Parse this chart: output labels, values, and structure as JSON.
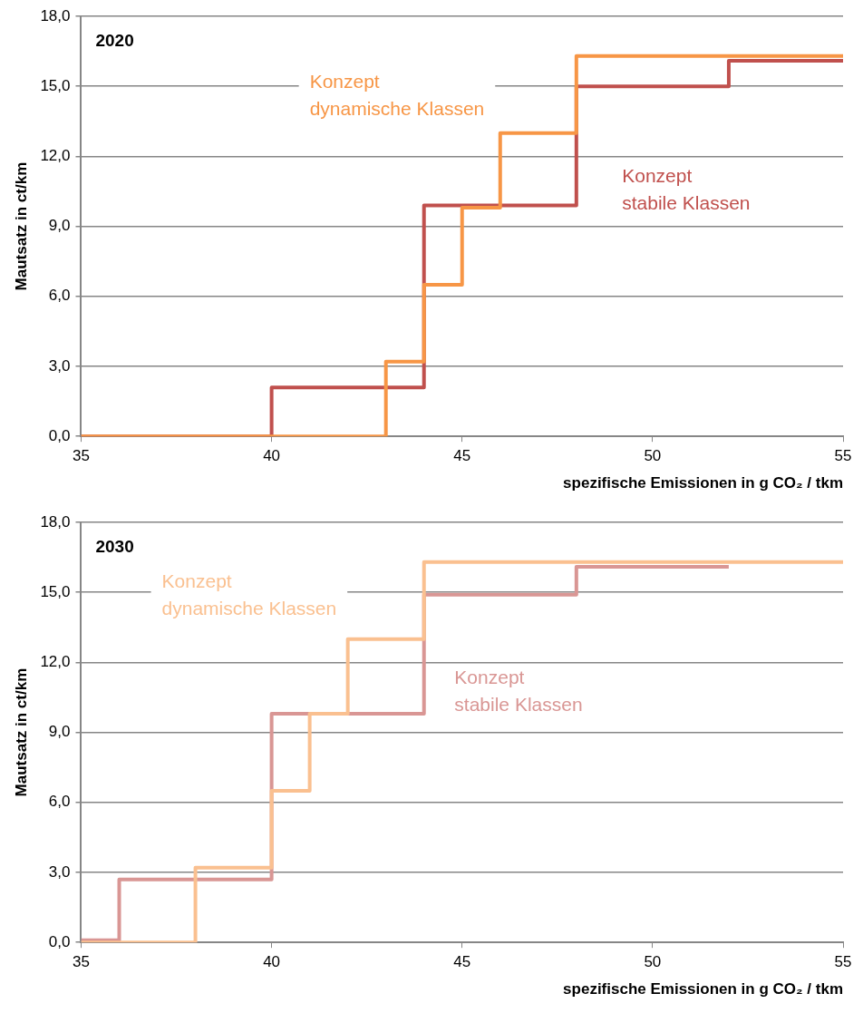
{
  "chart_data": [
    {
      "type": "step",
      "title": "2020",
      "xlabel": "spezifische Emissionen in g CO₂ / tkm",
      "ylabel": "Mautsatz in ct/km",
      "xlim": [
        35,
        55
      ],
      "xticks": [
        35,
        40,
        45,
        50,
        55
      ],
      "ylim": [
        0,
        18
      ],
      "yticks": [
        {
          "value": 0,
          "label": "0,0"
        },
        {
          "value": 3,
          "label": "3,0"
        },
        {
          "value": 6,
          "label": "6,0"
        },
        {
          "value": 9,
          "label": "9,0"
        },
        {
          "value": 12,
          "label": "12,0"
        },
        {
          "value": 15,
          "label": "15,0"
        },
        {
          "value": 18,
          "label": "18,0"
        }
      ],
      "grid": "y",
      "legend": false,
      "marker": "none",
      "line_style": "solid",
      "series": [
        {
          "name": "Konzept dynamische Klassen",
          "color": "#f79646",
          "x": [
            35,
            43,
            44,
            45,
            46,
            48,
            55
          ],
          "values": [
            0,
            3.2,
            6.5,
            9.8,
            13.0,
            16.3,
            16.3
          ]
        },
        {
          "name": "Konzept stabile Klassen",
          "color": "#c0504d",
          "x": [
            35,
            40,
            44,
            48,
            52,
            55
          ],
          "values": [
            0,
            2.1,
            9.9,
            15.0,
            16.1,
            16.1
          ]
        }
      ]
    },
    {
      "type": "step",
      "title": "2030",
      "xlabel": "spezifische Emissionen in g CO₂ / tkm",
      "ylabel": "Mautsatz in ct/km",
      "xlim": [
        35,
        55
      ],
      "xticks": [
        35,
        40,
        45,
        50,
        55
      ],
      "ylim": [
        0,
        18
      ],
      "yticks": [
        {
          "value": 0,
          "label": "0,0"
        },
        {
          "value": 3,
          "label": "3,0"
        },
        {
          "value": 6,
          "label": "6,0"
        },
        {
          "value": 9,
          "label": "9,0"
        },
        {
          "value": 12,
          "label": "12,0"
        },
        {
          "value": 15,
          "label": "15,0"
        },
        {
          "value": 18,
          "label": "18,0"
        }
      ],
      "grid": "y",
      "legend": false,
      "marker": "none",
      "line_style": "solid",
      "series": [
        {
          "name": "Konzept dynamische Klassen",
          "color": "#fac090",
          "x": [
            35,
            38,
            40,
            41,
            42,
            44,
            55
          ],
          "values": [
            0,
            3.2,
            6.5,
            9.8,
            13.0,
            16.3,
            16.3
          ]
        },
        {
          "name": "Konzept stabile Klassen",
          "color": "#d99694",
          "x": [
            35,
            36,
            40,
            44,
            48,
            52
          ],
          "values": [
            0.1,
            2.7,
            9.8,
            14.9,
            16.1,
            16.1
          ]
        }
      ]
    }
  ]
}
